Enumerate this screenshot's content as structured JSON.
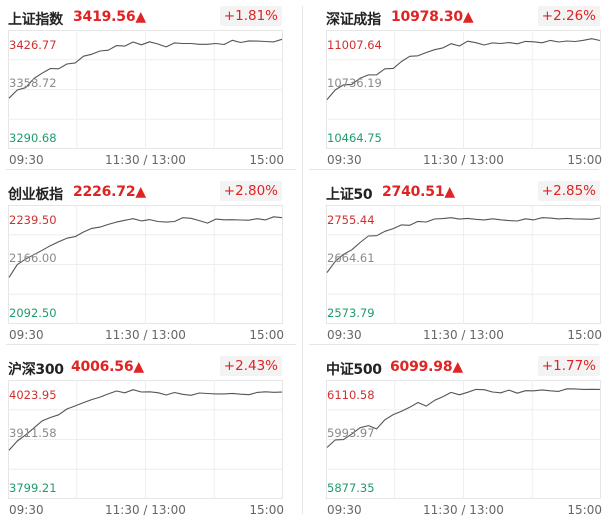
{
  "panels": [
    {
      "name": "上证指数",
      "price": "3419.56▲",
      "change": "+1.81%",
      "y_high": "3426.77",
      "y_mid": "3358.72",
      "y_low": "3290.68",
      "x_labels": [
        "09:30",
        "11:30 / 13:00",
        "15:00"
      ],
      "series": [
        3347,
        3358,
        3362,
        3371,
        3378,
        3385,
        3384,
        3391,
        3392,
        3399,
        3403,
        3405,
        3408,
        3412,
        3411,
        3416,
        3414,
        3418,
        3414,
        3412,
        3415,
        3414,
        3416,
        3413,
        3414,
        3416,
        3415,
        3418,
        3416,
        3418,
        3419,
        3417,
        3418,
        3420
      ]
    },
    {
      "name": "深证成指",
      "price": "10978.30▲",
      "change": "+2.26%",
      "y_high": "11007.64",
      "y_mid": "10736.19",
      "y_low": "10464.75",
      "x_labels": [
        "09:30",
        "11:30 / 13:00",
        "15:00"
      ],
      "series": [
        10690,
        10730,
        10755,
        10762,
        10790,
        10808,
        10812,
        10835,
        10842,
        10870,
        10895,
        10900,
        10918,
        10935,
        10942,
        10956,
        10953,
        10968,
        10962,
        10958,
        10960,
        10964,
        10968,
        10963,
        10970,
        10974,
        10968,
        10975,
        10972,
        10969,
        10973,
        10976,
        10981,
        10978
      ]
    },
    {
      "name": "创业板指",
      "price": "2226.72▲",
      "change": "+2.80%",
      "y_high": "2239.50",
      "y_mid": "2166.00",
      "y_low": "2092.50",
      "x_labels": [
        "09:30",
        "11:30 / 13:00",
        "15:00"
      ],
      "series": [
        2148,
        2165,
        2172,
        2178,
        2185,
        2192,
        2195,
        2200,
        2204,
        2210,
        2213,
        2216,
        2218,
        2222,
        2225,
        2227,
        2224,
        2226,
        2223,
        2221,
        2224,
        2227,
        2226,
        2224,
        2222,
        2225,
        2224,
        2226,
        2225,
        2224,
        2227,
        2226,
        2228,
        2227
      ]
    },
    {
      "name": "上证50",
      "price": "2740.51▲",
      "change": "+2.85%",
      "y_high": "2755.44",
      "y_mid": "2664.61",
      "y_low": "2573.79",
      "x_labels": [
        "09:30",
        "11:30 / 13:00",
        "15:00"
      ],
      "series": [
        2652,
        2670,
        2680,
        2690,
        2702,
        2710,
        2712,
        2720,
        2724,
        2728,
        2730,
        2734,
        2735,
        2738,
        2740,
        2742,
        2739,
        2741,
        2740,
        2738,
        2740,
        2739,
        2738,
        2737,
        2739,
        2738,
        2740,
        2739,
        2738,
        2739,
        2740,
        2739,
        2740,
        2741
      ]
    },
    {
      "name": "沪深300",
      "price": "4006.56▲",
      "change": "+2.43%",
      "y_high": "4023.95",
      "y_mid": "3911.58",
      "y_low": "3799.21",
      "x_labels": [
        "09:30",
        "11:30 / 13:00",
        "15:00"
      ],
      "series": [
        3888,
        3910,
        3922,
        3935,
        3948,
        3958,
        3960,
        3972,
        3978,
        3988,
        3994,
        3998,
        4002,
        4008,
        4006,
        4012,
        4009,
        4007,
        4005,
        4003,
        4005,
        4003,
        4002,
        4004,
        4003,
        4005,
        4004,
        4006,
        4005,
        4004,
        4006,
        4008,
        4009,
        4007
      ]
    },
    {
      "name": "中证500",
      "price": "6099.98▲",
      "change": "+1.77%",
      "y_high": "6110.58",
      "y_mid": "5993.97",
      "y_low": "5877.35",
      "x_labels": [
        "09:30",
        "11:30 / 13:00",
        "15:00"
      ],
      "series": [
        5978,
        5995,
        5992,
        6005,
        6020,
        6025,
        6018,
        6035,
        6045,
        6055,
        6062,
        6070,
        6065,
        6078,
        6085,
        6092,
        6088,
        6095,
        6100,
        6097,
        6095,
        6092,
        6096,
        6093,
        6098,
        6097,
        6099,
        6095,
        6097,
        6099,
        6102,
        6098,
        6101,
        6100
      ]
    }
  ]
}
